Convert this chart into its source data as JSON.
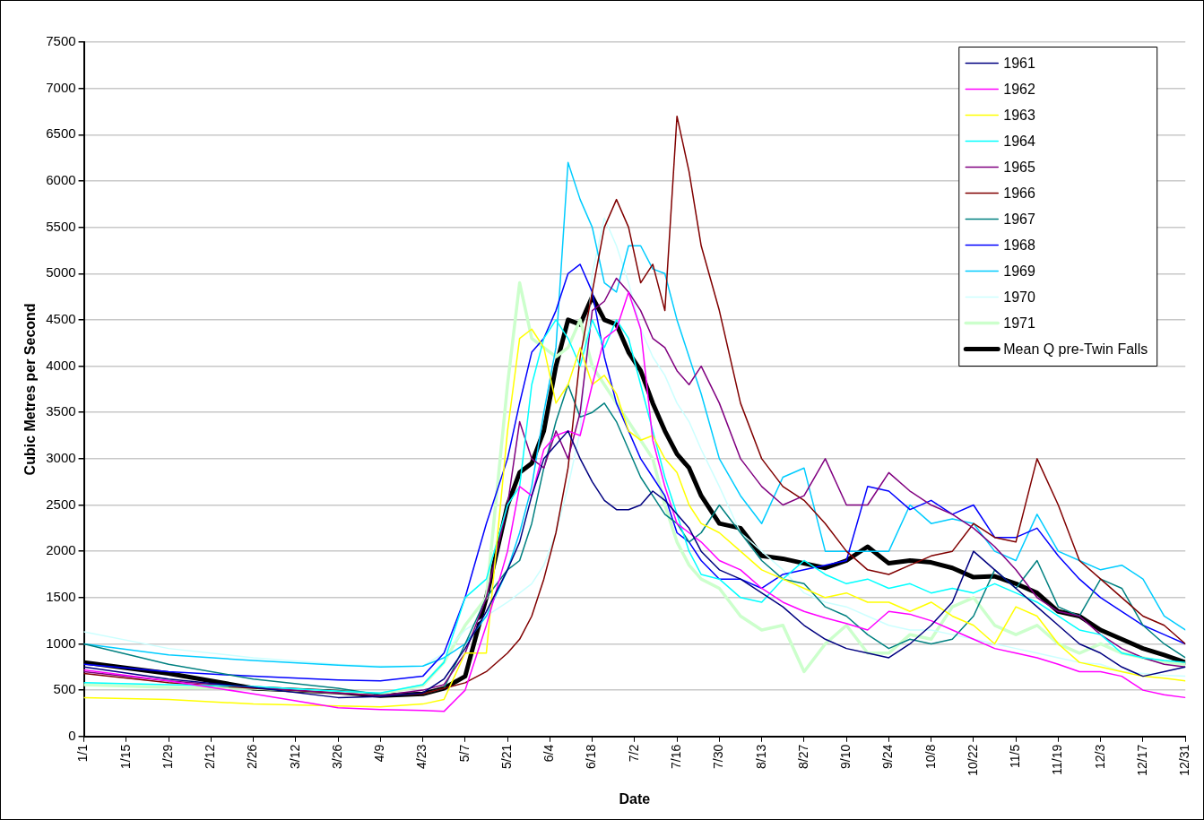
{
  "chart_data": {
    "type": "line",
    "xlabel": "Date",
    "ylabel": "Cubic Metres per Second",
    "x": [
      "--01-01",
      "--01-29",
      "--02-26",
      "--03-26",
      "--04-09",
      "--04-23",
      "--04-30",
      "--05-07",
      "--05-14",
      "--05-21",
      "--05-25",
      "--05-29",
      "--06-02",
      "--06-06",
      "--06-10",
      "--06-14",
      "--06-18",
      "--06-22",
      "--06-26",
      "--06-30",
      "--07-04",
      "--07-08",
      "--07-12",
      "--07-16",
      "--07-20",
      "--07-24",
      "--07-30",
      "--08-06",
      "--08-13",
      "--08-20",
      "--08-27",
      "--09-03",
      "--09-10",
      "--09-17",
      "--09-24",
      "--10-01",
      "--10-08",
      "--10-15",
      "--10-22",
      "--10-29",
      "--11-05",
      "--11-12",
      "--11-19",
      "--11-26",
      "--12-03",
      "--12-10",
      "--12-17",
      "--12-24",
      "--12-31"
    ],
    "xlim": [
      "--01-01",
      "--12-31"
    ],
    "xticks": [
      {
        "value": "--01-01",
        "label": "1/1"
      },
      {
        "value": "--01-15",
        "label": "1/15"
      },
      {
        "value": "--01-29",
        "label": "1/29"
      },
      {
        "value": "--02-12",
        "label": "2/12"
      },
      {
        "value": "--02-26",
        "label": "2/26"
      },
      {
        "value": "--03-12",
        "label": "3/12"
      },
      {
        "value": "--03-26",
        "label": "3/26"
      },
      {
        "value": "--04-09",
        "label": "4/9"
      },
      {
        "value": "--04-23",
        "label": "4/23"
      },
      {
        "value": "--05-07",
        "label": "5/7"
      },
      {
        "value": "--05-21",
        "label": "5/21"
      },
      {
        "value": "--06-04",
        "label": "6/4"
      },
      {
        "value": "--06-18",
        "label": "6/18"
      },
      {
        "value": "--07-02",
        "label": "7/2"
      },
      {
        "value": "--07-16",
        "label": "7/16"
      },
      {
        "value": "--07-30",
        "label": "7/30"
      },
      {
        "value": "--08-13",
        "label": "8/13"
      },
      {
        "value": "--08-27",
        "label": "8/27"
      },
      {
        "value": "--09-10",
        "label": "9/10"
      },
      {
        "value": "--09-24",
        "label": "9/24"
      },
      {
        "value": "--10-08",
        "label": "10/8"
      },
      {
        "value": "--10-22",
        "label": "10/22"
      },
      {
        "value": "--11-05",
        "label": "11/5"
      },
      {
        "value": "--11-19",
        "label": "11/19"
      },
      {
        "value": "--12-03",
        "label": "12/3"
      },
      {
        "value": "--12-17",
        "label": "12/17"
      },
      {
        "value": "--12-31",
        "label": "12/31"
      }
    ],
    "ylim": [
      0,
      7500
    ],
    "yticks": [
      0,
      500,
      1000,
      1500,
      2000,
      2500,
      3000,
      3500,
      4000,
      4500,
      5000,
      5500,
      6000,
      6500,
      7000,
      7500
    ],
    "grid": "y",
    "legend": "top right",
    "marker": "none",
    "line_style": "solid",
    "series": [
      {
        "name": "1961",
        "color": "#000080",
        "values": [
          750,
          620,
          530,
          420,
          430,
          470,
          620,
          950,
          1350,
          1800,
          2100,
          2600,
          3000,
          3150,
          3300,
          3000,
          2750,
          2550,
          2450,
          2450,
          2500,
          2650,
          2550,
          2400,
          2250,
          2000,
          1800,
          1700,
          1550,
          1400,
          1200,
          1050,
          950,
          900,
          850,
          1000,
          1200,
          1450,
          2000,
          1800,
          1600,
          1400,
          1200,
          1000,
          900,
          750,
          650,
          700,
          750
        ]
      },
      {
        "name": "1962",
        "color": "#ff00ff",
        "values": [
          720,
          600,
          460,
          310,
          290,
          280,
          270,
          500,
          1200,
          2000,
          2700,
          2600,
          3100,
          3250,
          3300,
          3250,
          3800,
          4300,
          4400,
          4800,
          4400,
          3200,
          2700,
          2300,
          2200,
          2100,
          1900,
          1800,
          1600,
          1450,
          1350,
          1280,
          1220,
          1150,
          1350,
          1320,
          1250,
          1150,
          1050,
          950,
          900,
          850,
          780,
          700,
          700,
          650,
          500,
          450,
          420
        ]
      },
      {
        "name": "1963",
        "color": "#ffff00",
        "values": [
          420,
          400,
          350,
          330,
          320,
          350,
          400,
          900,
          900,
          3300,
          4300,
          4400,
          4200,
          3600,
          3800,
          4200,
          3800,
          3900,
          3700,
          3300,
          3200,
          3250,
          3000,
          2850,
          2500,
          2300,
          2200,
          2000,
          1800,
          1700,
          1600,
          1500,
          1550,
          1450,
          1450,
          1350,
          1450,
          1300,
          1200,
          1000,
          1400,
          1300,
          1000,
          800,
          750,
          700,
          650,
          630,
          600
        ]
      },
      {
        "name": "1964",
        "color": "#00ffff",
        "values": [
          580,
          560,
          540,
          490,
          470,
          560,
          800,
          1500,
          1700,
          2500,
          2700,
          3800,
          4300,
          4500,
          4300,
          4000,
          4500,
          4200,
          4500,
          4300,
          3800,
          3300,
          2800,
          2400,
          2000,
          1750,
          1700,
          1500,
          1450,
          1700,
          1900,
          1750,
          1650,
          1700,
          1600,
          1650,
          1550,
          1600,
          1550,
          1650,
          1550,
          1450,
          1300,
          1150,
          1100,
          900,
          850,
          820,
          800
        ]
      },
      {
        "name": "1965",
        "color": "#800080",
        "values": [
          700,
          600,
          530,
          470,
          440,
          500,
          560,
          900,
          1500,
          2500,
          3400,
          3000,
          2900,
          3300,
          3000,
          3500,
          4600,
          4700,
          4950,
          4800,
          4600,
          4300,
          4200,
          3950,
          3800,
          4000,
          3600,
          3000,
          2700,
          2500,
          2600,
          3000,
          2500,
          2500,
          2850,
          2650,
          2500,
          2400,
          2250,
          2050,
          1800,
          1500,
          1350,
          1300,
          1100,
          950,
          850,
          780,
          750
        ]
      },
      {
        "name": "1966",
        "color": "#800000",
        "values": [
          680,
          580,
          520,
          470,
          440,
          460,
          520,
          580,
          700,
          900,
          1050,
          1300,
          1700,
          2200,
          2900,
          4100,
          4800,
          5500,
          5800,
          5500,
          4900,
          5100,
          4600,
          6700,
          6100,
          5300,
          4600,
          3600,
          3000,
          2700,
          2550,
          2300,
          2000,
          1800,
          1750,
          1850,
          1950,
          2000,
          2300,
          2150,
          2100,
          3000,
          2500,
          1900,
          1700,
          1500,
          1300,
          1200,
          1000
        ]
      },
      {
        "name": "1967",
        "color": "#008080",
        "values": [
          1000,
          780,
          620,
          520,
          450,
          460,
          520,
          1000,
          1500,
          1800,
          1900,
          2300,
          2900,
          3400,
          3800,
          3450,
          3500,
          3600,
          3400,
          3100,
          2800,
          2600,
          2400,
          2300,
          2100,
          2200,
          2500,
          2200,
          1900,
          1700,
          1650,
          1400,
          1300,
          1100,
          950,
          1050,
          1000,
          1050,
          1300,
          1800,
          1600,
          1900,
          1400,
          1300,
          1700,
          1600,
          1200,
          1000,
          850
        ]
      },
      {
        "name": "1968",
        "color": "#0000ff",
        "values": [
          780,
          700,
          650,
          610,
          600,
          650,
          900,
          1500,
          2300,
          3000,
          3600,
          4150,
          4300,
          4600,
          5000,
          5100,
          4800,
          4100,
          3600,
          3300,
          3000,
          2800,
          2600,
          2200,
          2100,
          1900,
          1700,
          1700,
          1600,
          1750,
          1800,
          1850,
          1900,
          2700,
          2650,
          2450,
          2550,
          2400,
          2500,
          2150,
          2150,
          2250,
          1950,
          1700,
          1500,
          1350,
          1200,
          1100,
          1000
        ]
      },
      {
        "name": "1969",
        "color": "#00ccff",
        "values": [
          1000,
          880,
          820,
          770,
          750,
          760,
          850,
          1000,
          1300,
          1800,
          2200,
          2700,
          3500,
          4200,
          6200,
          5800,
          5500,
          4900,
          4800,
          5300,
          5300,
          5050,
          5000,
          4500,
          4100,
          3700,
          3000,
          2600,
          2300,
          2800,
          2900,
          2000,
          2000,
          2000,
          2000,
          2500,
          2300,
          2350,
          2300,
          2000,
          1900,
          2400,
          2000,
          1900,
          1800,
          1850,
          1700,
          1300,
          1150
        ]
      },
      {
        "name": "1970",
        "color": "#ccffff",
        "values": [
          1130,
          950,
          850,
          780,
          760,
          760,
          900,
          1150,
          1300,
          1450,
          1550,
          1650,
          1850,
          2200,
          2700,
          3300,
          5000,
          5600,
          5300,
          4900,
          4400,
          4100,
          3900,
          3600,
          3400,
          3100,
          2700,
          2200,
          2000,
          1800,
          1550,
          1450,
          1400,
          1300,
          1200,
          1150,
          1150,
          1100,
          1050,
          1000,
          950,
          900,
          850,
          800,
          780,
          700,
          680,
          660,
          650
        ]
      },
      {
        "name": "1971",
        "color": "#ccffcc",
        "values": [
          560,
          530,
          520,
          480,
          460,
          550,
          800,
          1200,
          1500,
          3800,
          4900,
          4300,
          4200,
          4100,
          4200,
          4500,
          4000,
          3800,
          3600,
          3400,
          3200,
          3000,
          2500,
          2100,
          1850,
          1700,
          1600,
          1300,
          1150,
          1200,
          700,
          1000,
          1200,
          900,
          900,
          1100,
          1050,
          1400,
          1500,
          1200,
          1100,
          1200,
          1000,
          900,
          1000,
          900,
          850,
          800,
          780
        ]
      },
      {
        "name": "Mean Q pre-Twin Falls",
        "color": "#000000",
        "values": [
          800,
          680,
          520,
          480,
          440,
          460,
          520,
          650,
          1500,
          2500,
          2850,
          2950,
          3300,
          4000,
          4500,
          4450,
          4750,
          4500,
          4450,
          4150,
          3950,
          3600,
          3300,
          3050,
          2900,
          2600,
          2300,
          2250,
          1950,
          1920,
          1870,
          1820,
          1900,
          2050,
          1870,
          1900,
          1880,
          1820,
          1720,
          1730,
          1650,
          1550,
          1350,
          1300,
          1150,
          1050,
          950,
          880,
          800
        ]
      }
    ]
  }
}
